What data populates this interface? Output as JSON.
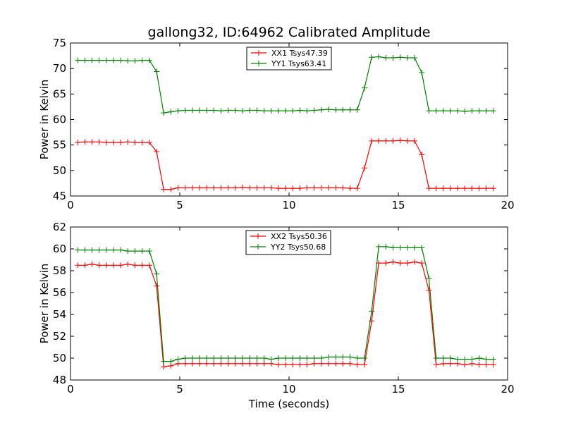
{
  "title": "gallong32, ID:64962 Calibrated Amplitude",
  "colors": {
    "xx": "#ff0000",
    "yy": "#008000"
  },
  "chart_data": [
    {
      "type": "line",
      "title": "gallong32, ID:64962 Calibrated Amplitude",
      "xlabel": "",
      "ylabel": "Power in Kelvin",
      "xlim": [
        0,
        20
      ],
      "ylim": [
        45,
        75
      ],
      "xticks": [
        "0",
        "5",
        "10",
        "15",
        "20"
      ],
      "yticks": [
        "45",
        "50",
        "55",
        "60",
        "65",
        "70",
        "75"
      ],
      "grid": false,
      "legend_position": "top-center",
      "x": [
        0.33,
        0.66,
        0.98,
        1.31,
        1.64,
        1.97,
        2.3,
        2.62,
        2.95,
        3.28,
        3.61,
        3.94,
        4.26,
        4.59,
        4.92,
        5.25,
        5.58,
        5.9,
        6.23,
        6.56,
        6.89,
        7.22,
        7.54,
        7.87,
        8.2,
        8.53,
        8.86,
        9.18,
        9.51,
        9.84,
        10.17,
        10.5,
        10.82,
        11.15,
        11.48,
        11.81,
        12.14,
        12.46,
        12.79,
        13.12,
        13.45,
        13.78,
        14.1,
        14.43,
        14.76,
        15.09,
        15.42,
        15.74,
        16.07,
        16.4,
        16.73,
        17.06,
        17.38,
        17.71,
        18.04,
        18.37,
        18.7,
        19.02,
        19.35
      ],
      "series": [
        {
          "name": "XX1 Tsys47.39",
          "values": [
            55.5,
            55.6,
            55.6,
            55.6,
            55.5,
            55.5,
            55.5,
            55.6,
            55.5,
            55.5,
            55.5,
            53.7,
            46.3,
            46.3,
            46.6,
            46.6,
            46.6,
            46.6,
            46.6,
            46.6,
            46.6,
            46.6,
            46.6,
            46.7,
            46.6,
            46.6,
            46.6,
            46.6,
            46.5,
            46.5,
            46.5,
            46.5,
            46.6,
            46.6,
            46.6,
            46.6,
            46.6,
            46.6,
            46.5,
            46.5,
            50.5,
            55.8,
            55.8,
            55.8,
            55.8,
            55.9,
            55.8,
            55.8,
            53.1,
            46.5,
            46.5,
            46.5,
            46.5,
            46.5,
            46.5,
            46.5,
            46.5,
            46.5,
            46.5
          ]
        },
        {
          "name": "YY1 Tsys63.41",
          "values": [
            71.6,
            71.6,
            71.6,
            71.6,
            71.6,
            71.6,
            71.6,
            71.5,
            71.5,
            71.6,
            71.6,
            69.4,
            61.3,
            61.5,
            61.7,
            61.8,
            61.8,
            61.8,
            61.8,
            61.8,
            61.7,
            61.8,
            61.8,
            61.7,
            61.8,
            61.8,
            61.7,
            61.7,
            61.7,
            61.7,
            61.7,
            61.8,
            61.7,
            61.8,
            61.9,
            62.0,
            61.9,
            61.9,
            61.9,
            61.9,
            66.2,
            72.2,
            72.3,
            72.1,
            72.1,
            72.2,
            72.1,
            72.1,
            69.2,
            61.7,
            61.7,
            61.7,
            61.7,
            61.7,
            61.6,
            61.7,
            61.7,
            61.7,
            61.7
          ]
        }
      ]
    },
    {
      "type": "line",
      "title": "",
      "xlabel": "Time (seconds)",
      "ylabel": "Power in Kelvin",
      "xlim": [
        0,
        20
      ],
      "ylim": [
        48,
        62
      ],
      "xticks": [
        "0",
        "5",
        "10",
        "15",
        "20"
      ],
      "yticks": [
        "48",
        "50",
        "52",
        "54",
        "56",
        "58",
        "60",
        "62"
      ],
      "grid": false,
      "legend_position": "top-center",
      "x": [
        0.33,
        0.66,
        0.98,
        1.31,
        1.64,
        1.97,
        2.3,
        2.62,
        2.95,
        3.28,
        3.61,
        3.94,
        4.26,
        4.59,
        4.92,
        5.25,
        5.58,
        5.9,
        6.23,
        6.56,
        6.89,
        7.22,
        7.54,
        7.87,
        8.2,
        8.53,
        8.86,
        9.18,
        9.51,
        9.84,
        10.17,
        10.5,
        10.82,
        11.15,
        11.48,
        11.81,
        12.14,
        12.46,
        12.79,
        13.12,
        13.45,
        13.78,
        14.1,
        14.43,
        14.76,
        15.09,
        15.42,
        15.74,
        16.07,
        16.4,
        16.73,
        17.06,
        17.38,
        17.71,
        18.04,
        18.37,
        18.7,
        19.02,
        19.35
      ],
      "series": [
        {
          "name": "XX2 Tsys50.36",
          "values": [
            58.5,
            58.5,
            58.6,
            58.5,
            58.5,
            58.5,
            58.5,
            58.6,
            58.5,
            58.5,
            58.5,
            56.6,
            49.2,
            49.3,
            49.5,
            49.5,
            49.5,
            49.5,
            49.5,
            49.5,
            49.5,
            49.5,
            49.5,
            49.5,
            49.5,
            49.5,
            49.5,
            49.5,
            49.4,
            49.4,
            49.4,
            49.4,
            49.4,
            49.5,
            49.5,
            49.5,
            49.5,
            49.5,
            49.5,
            49.4,
            49.4,
            53.4,
            58.7,
            58.7,
            58.8,
            58.7,
            58.7,
            58.8,
            58.7,
            56.2,
            49.4,
            49.5,
            49.5,
            49.5,
            49.4,
            49.5,
            49.4,
            49.4,
            49.4
          ]
        },
        {
          "name": "YY2 Tsys50.68",
          "values": [
            59.9,
            59.9,
            59.9,
            59.9,
            59.9,
            59.9,
            59.9,
            59.8,
            59.8,
            59.8,
            59.8,
            57.7,
            49.7,
            49.7,
            49.9,
            50.0,
            50.0,
            50.0,
            50.0,
            50.0,
            50.0,
            50.0,
            50.0,
            50.0,
            50.0,
            50.0,
            50.0,
            49.9,
            50.0,
            50.0,
            50.0,
            50.0,
            50.0,
            50.0,
            50.0,
            50.1,
            50.1,
            50.1,
            50.1,
            50.0,
            50.0,
            54.3,
            60.2,
            60.2,
            60.1,
            60.1,
            60.1,
            60.1,
            60.1,
            57.3,
            50.0,
            50.0,
            50.0,
            49.9,
            49.9,
            49.9,
            50.0,
            49.9,
            49.9
          ]
        }
      ]
    }
  ]
}
